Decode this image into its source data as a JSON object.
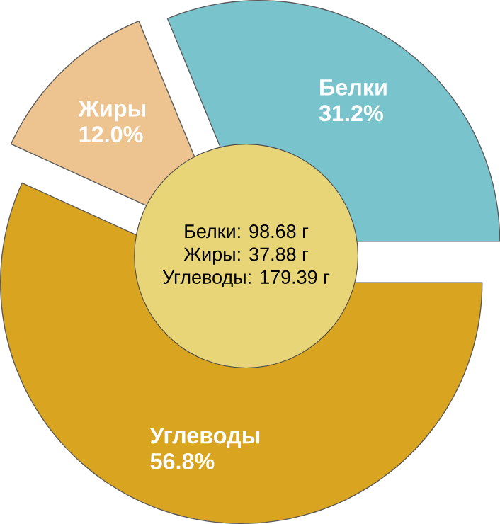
{
  "chart_data": {
    "type": "pie",
    "categories": [
      "Белки",
      "Углеводы",
      "Жиры"
    ],
    "values": [
      31.2,
      56.8,
      12.0
    ],
    "colors": [
      "#78c3cc",
      "#d9a521",
      "#edc48f"
    ],
    "value_labels": [
      "31.2%",
      "56.8%",
      "12.0%"
    ],
    "annotations": [
      "Белки: 98.68 г",
      "Жиры: 37.88 г",
      "Углеводы: 179.39 г"
    ]
  }
}
